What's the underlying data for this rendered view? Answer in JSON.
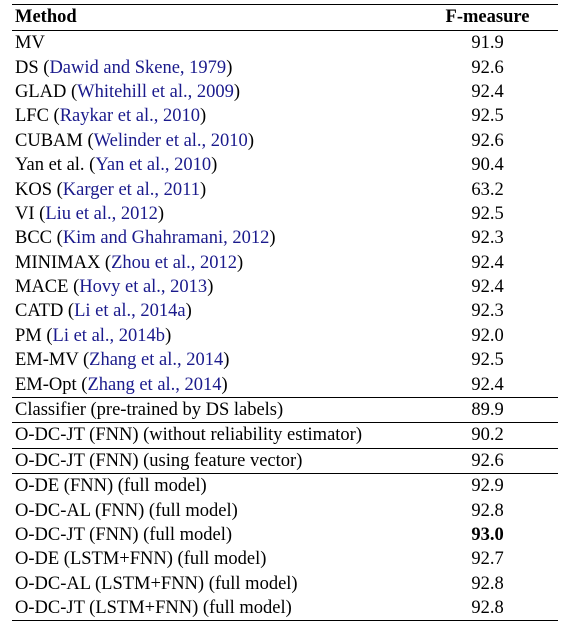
{
  "table": {
    "headers": {
      "method": "Method",
      "score": "F-measure"
    },
    "groups": [
      [
        {
          "name": "MV",
          "cite": "",
          "score": "91.9"
        },
        {
          "name": "DS (",
          "cite": "Dawid and Skene, 1979",
          "close": ")",
          "score": "92.6"
        },
        {
          "name": "GLAD (",
          "cite": "Whitehill et al., 2009",
          "close": ")",
          "score": "92.4"
        },
        {
          "name": "LFC (",
          "cite": "Raykar et al., 2010",
          "close": ")",
          "score": "92.5"
        },
        {
          "name": "CUBAM (",
          "cite": "Welinder et al., 2010",
          "close": ")",
          "score": "92.6"
        },
        {
          "name": "Yan et al. (",
          "cite": "Yan et al., 2010",
          "close": ")",
          "score": "90.4"
        },
        {
          "name": "KOS (",
          "cite": "Karger et al., 2011",
          "close": ")",
          "score": "63.2"
        },
        {
          "name": "VI (",
          "cite": "Liu et al., 2012",
          "close": ")",
          "score": "92.5"
        },
        {
          "name": "BCC (",
          "cite": "Kim and Ghahramani, 2012",
          "close": ")",
          "score": "92.3"
        },
        {
          "name": "MINIMAX (",
          "cite": "Zhou et al., 2012",
          "close": ")",
          "score": "92.4"
        },
        {
          "name": "MACE (",
          "cite": "Hovy et al., 2013",
          "close": ")",
          "score": "92.4"
        },
        {
          "name": "CATD (",
          "cite": "Li et al., 2014a",
          "close": ")",
          "score": "92.3"
        },
        {
          "name": "PM (",
          "cite": "Li et al., 2014b",
          "close": ")",
          "score": "92.0"
        },
        {
          "name": "EM-MV (",
          "cite": "Zhang et al., 2014",
          "close": ")",
          "score": "92.5"
        },
        {
          "name": "EM-Opt (",
          "cite": "Zhang et al., 2014",
          "close": ")",
          "score": "92.4"
        }
      ],
      [
        {
          "name": "Classifier (pre-trained by DS labels)",
          "cite": "",
          "score": "89.9"
        }
      ],
      [
        {
          "name": "O-DC-JT (FNN) (without reliability estimator)",
          "cite": "",
          "score": "90.2"
        }
      ],
      [
        {
          "name": "O-DC-JT (FNN) (using feature vector)",
          "cite": "",
          "score": "92.6"
        }
      ],
      [
        {
          "name": "O-DE (FNN) (full model)",
          "cite": "",
          "score": "92.9"
        },
        {
          "name": "O-DC-AL (FNN) (full model)",
          "cite": "",
          "score": "92.8"
        },
        {
          "name": "O-DC-JT (FNN) (full model)",
          "cite": "",
          "score": "93.0",
          "bold": true
        },
        {
          "name": "O-DE (LSTM+FNN) (full model)",
          "cite": "",
          "score": "92.7"
        },
        {
          "name": "O-DC-AL (LSTM+FNN) (full model)",
          "cite": "",
          "score": "92.8"
        },
        {
          "name": "O-DC-JT (LSTM+FNN) (full model)",
          "cite": "",
          "score": "92.8"
        }
      ]
    ],
    "colors": {
      "citation": "#1a1a8c",
      "text": "#000000",
      "rule": "#000000"
    }
  }
}
